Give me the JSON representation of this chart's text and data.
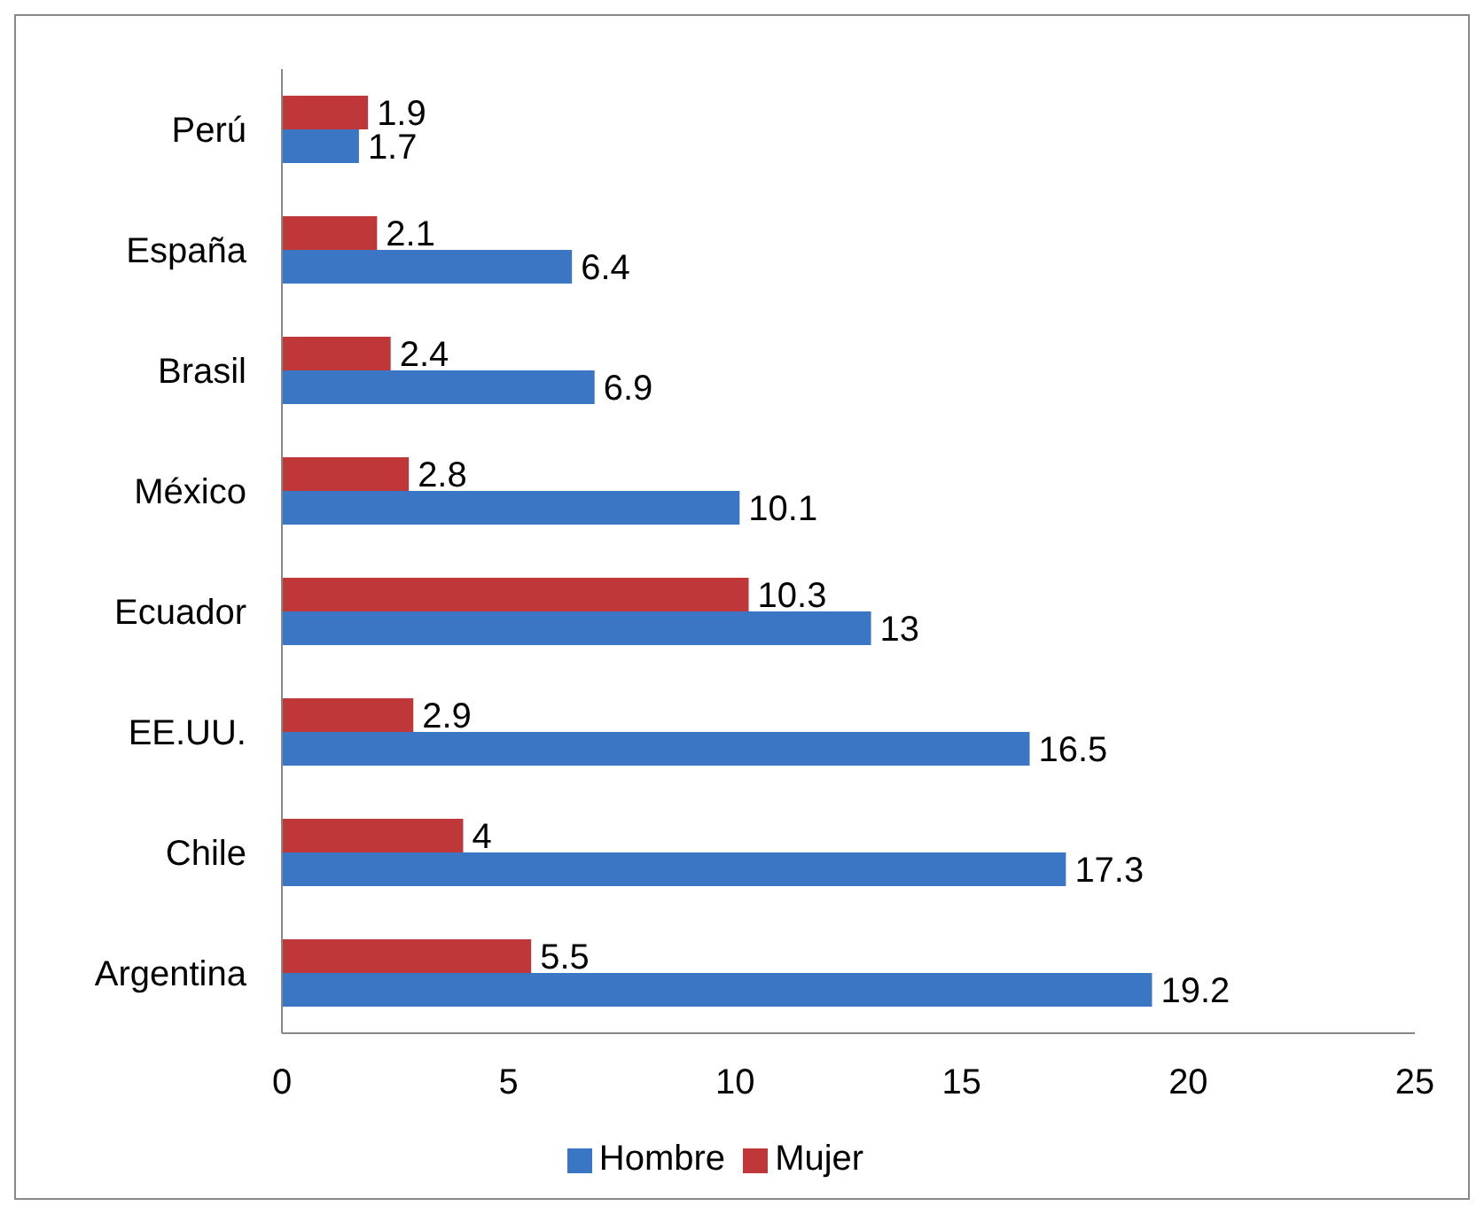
{
  "chart_data": {
    "type": "bar",
    "orientation": "horizontal",
    "categories": [
      "Perú",
      "España",
      "Brasil",
      "México",
      "Ecuador",
      "EE.UU.",
      "Chile",
      "Argentina"
    ],
    "series": [
      {
        "name": "Mujer",
        "color": "#c0373a",
        "values": [
          1.9,
          2.1,
          2.4,
          2.8,
          10.3,
          2.9,
          4,
          5.5
        ]
      },
      {
        "name": "Hombre",
        "color": "#3a76c4",
        "values": [
          1.7,
          6.4,
          6.9,
          10.1,
          13,
          16.5,
          17.3,
          19.2
        ]
      }
    ],
    "xlim": [
      0,
      25
    ],
    "xticks": [
      0,
      5,
      10,
      15,
      20,
      25
    ],
    "grid": false,
    "legend": "bottom",
    "data_labels": true
  }
}
